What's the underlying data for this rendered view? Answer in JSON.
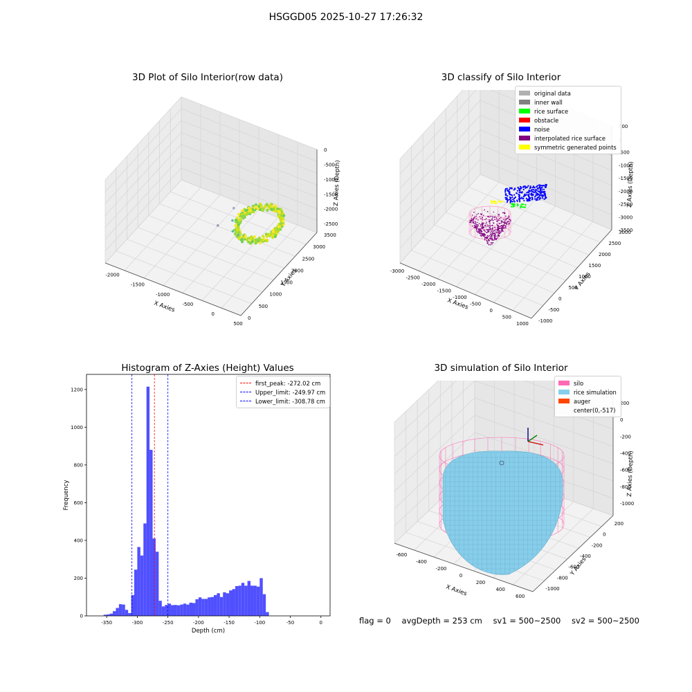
{
  "suptitle": "HSGGD05 2025-10-27 17:26:32",
  "footer": {
    "flag": "flag = 0",
    "avg_depth": "avgDepth = 253 cm",
    "sv1": "sv1 = 500~2500",
    "sv2": "sv2 = 500~2500"
  },
  "colors": {
    "hist_bar": "#5050ff",
    "first_peak": "#ff0000",
    "limits": "#0000ff",
    "pane": "#f2f2f2",
    "silo": "#ff69b4",
    "rice_simulation": "#87ceeb",
    "auger": "#ff4500"
  },
  "chart_data": [
    {
      "type": "scatter",
      "title": "3D Plot of Silo Interior(row data)",
      "xlabel": "X Axies",
      "ylabel": "Y Axies",
      "zlabel": "Z Axies (Depth)",
      "x_ticks": [
        "-2000",
        "-1500",
        "-1000",
        "-500",
        "0",
        "500"
      ],
      "y_ticks": [
        "0",
        "500",
        "1000",
        "1500",
        "2000",
        "2500",
        "3000",
        "3500"
      ],
      "z_ticks": [
        "0",
        "-500",
        "-1000",
        "-1500",
        "-2000",
        "-2500"
      ],
      "xlim": [
        -2200,
        500
      ],
      "ylim": [
        0,
        3500
      ],
      "zlim": [
        -2800,
        0
      ],
      "colormap": "viridis",
      "grid": true
    },
    {
      "type": "scatter",
      "title": "3D classify of Silo Interior",
      "xlabel": "X Axies",
      "ylabel": "Y Axies",
      "zlabel": "Z Axies (Depth)",
      "x_ticks": [
        "-3000",
        "-2500",
        "-2000",
        "-1500",
        "-1000",
        "-500",
        "0",
        "500",
        "1000"
      ],
      "y_ticks": [
        "-1000",
        "-500",
        "0",
        "500",
        "1000",
        "1500",
        "2000",
        "2500",
        "3000"
      ],
      "z_ticks": [
        "500",
        "0",
        "-500",
        "-1000",
        "-1500",
        "-2000",
        "-2500",
        "-3000",
        "-3500"
      ],
      "xlim": [
        -3000,
        1200
      ],
      "ylim": [
        -1000,
        3000
      ],
      "zlim": [
        -3500,
        500
      ],
      "grid": true,
      "legend_position": "top-right",
      "legend": [
        {
          "label": "original data",
          "color": "#b0b0b0"
        },
        {
          "label": "inner wall",
          "color": "#808080"
        },
        {
          "label": "rice surface",
          "color": "#00ff00"
        },
        {
          "label": "obstacle",
          "color": "#ff0000"
        },
        {
          "label": "noise",
          "color": "#0000ff"
        },
        {
          "label": "interpolated rice surface",
          "color": "#800080"
        },
        {
          "label": "symmetric generated points",
          "color": "#ffff00"
        }
      ]
    },
    {
      "type": "bar",
      "title": "Histogram of Z-Axies (Height) Values",
      "xlabel": "Depth (cm)",
      "ylabel": "Frequency",
      "x_ticks": [
        "-350",
        "-300",
        "-250",
        "-200",
        "-150",
        "-100",
        "-50",
        "0"
      ],
      "y_ticks": [
        "0",
        "200",
        "400",
        "600",
        "800",
        "1000",
        "1200"
      ],
      "xlim": [
        -383,
        15
      ],
      "ylim": [
        0,
        1280
      ],
      "bin_width": 5,
      "bin_starts": [
        -355,
        -350,
        -345,
        -340,
        -335,
        -330,
        -325,
        -320,
        -315,
        -310,
        -305,
        -300,
        -295,
        -290,
        -285,
        -280,
        -275,
        -270,
        -265,
        -260,
        -255,
        -250,
        -245,
        -240,
        -235,
        -230,
        -225,
        -220,
        -215,
        -210,
        -205,
        -200,
        -195,
        -190,
        -185,
        -180,
        -175,
        -170,
        -165,
        -160,
        -155,
        -150,
        -145,
        -140,
        -135,
        -130,
        -125,
        -120,
        -115,
        -110,
        -105,
        -100,
        -95,
        -90,
        -85,
        -80,
        -75,
        -70,
        -65,
        -60,
        -55,
        -50,
        -45,
        -40,
        -35,
        -30,
        -25,
        -20,
        -15,
        -10,
        -5
      ],
      "values": [
        6,
        8,
        12,
        25,
        42,
        62,
        60,
        32,
        15,
        110,
        245,
        365,
        320,
        490,
        1215,
        880,
        410,
        340,
        80,
        50,
        58,
        65,
        57,
        58,
        56,
        60,
        65,
        60,
        70,
        68,
        88,
        98,
        90,
        90,
        98,
        100,
        110,
        120,
        100,
        125,
        120,
        135,
        142,
        158,
        160,
        175,
        160,
        185,
        160,
        160,
        155,
        200,
        115,
        20,
        0,
        0,
        0,
        0,
        0,
        0,
        0,
        0,
        0,
        0,
        0,
        0,
        0,
        0,
        0,
        0,
        0
      ],
      "vlines": [
        {
          "name": "first_peak: -272.02 cm",
          "x": -272.02,
          "color": "#ff0000"
        },
        {
          "name": "Upper_limit: -249.97 cm",
          "x": -249.97,
          "color": "#0000ff"
        },
        {
          "name": "Lower_limit: -308.78 cm",
          "x": -308.78,
          "color": "#0000ff"
        }
      ],
      "legend_position": "top-right",
      "grid": false
    },
    {
      "type": "scatter",
      "title": "3D simulation of Silo Interior",
      "xlabel": "X Axies",
      "ylabel": "Y Axies",
      "zlabel": "Z Axies (Depth)",
      "x_ticks": [
        "-600",
        "-400",
        "-200",
        "0",
        "200",
        "400",
        "600"
      ],
      "y_ticks": [
        "-1000",
        "-800",
        "-600",
        "-400",
        "-200",
        "0",
        "200"
      ],
      "z_ticks": [
        "200",
        "0",
        "-200",
        "-400",
        "-600",
        "-800",
        "-1000"
      ],
      "xlim": [
        -700,
        700
      ],
      "ylim": [
        -1100,
        300
      ],
      "zlim": [
        -1150,
        300
      ],
      "grid": true,
      "legend_position": "top-right",
      "legend": [
        {
          "label": "silo",
          "color": "#ff69b4"
        },
        {
          "label": "rice simulation",
          "color": "#87ceeb"
        },
        {
          "label": "auger",
          "color": "#ff4500"
        },
        {
          "label": "center(0,-517)",
          "color": ""
        }
      ]
    }
  ]
}
